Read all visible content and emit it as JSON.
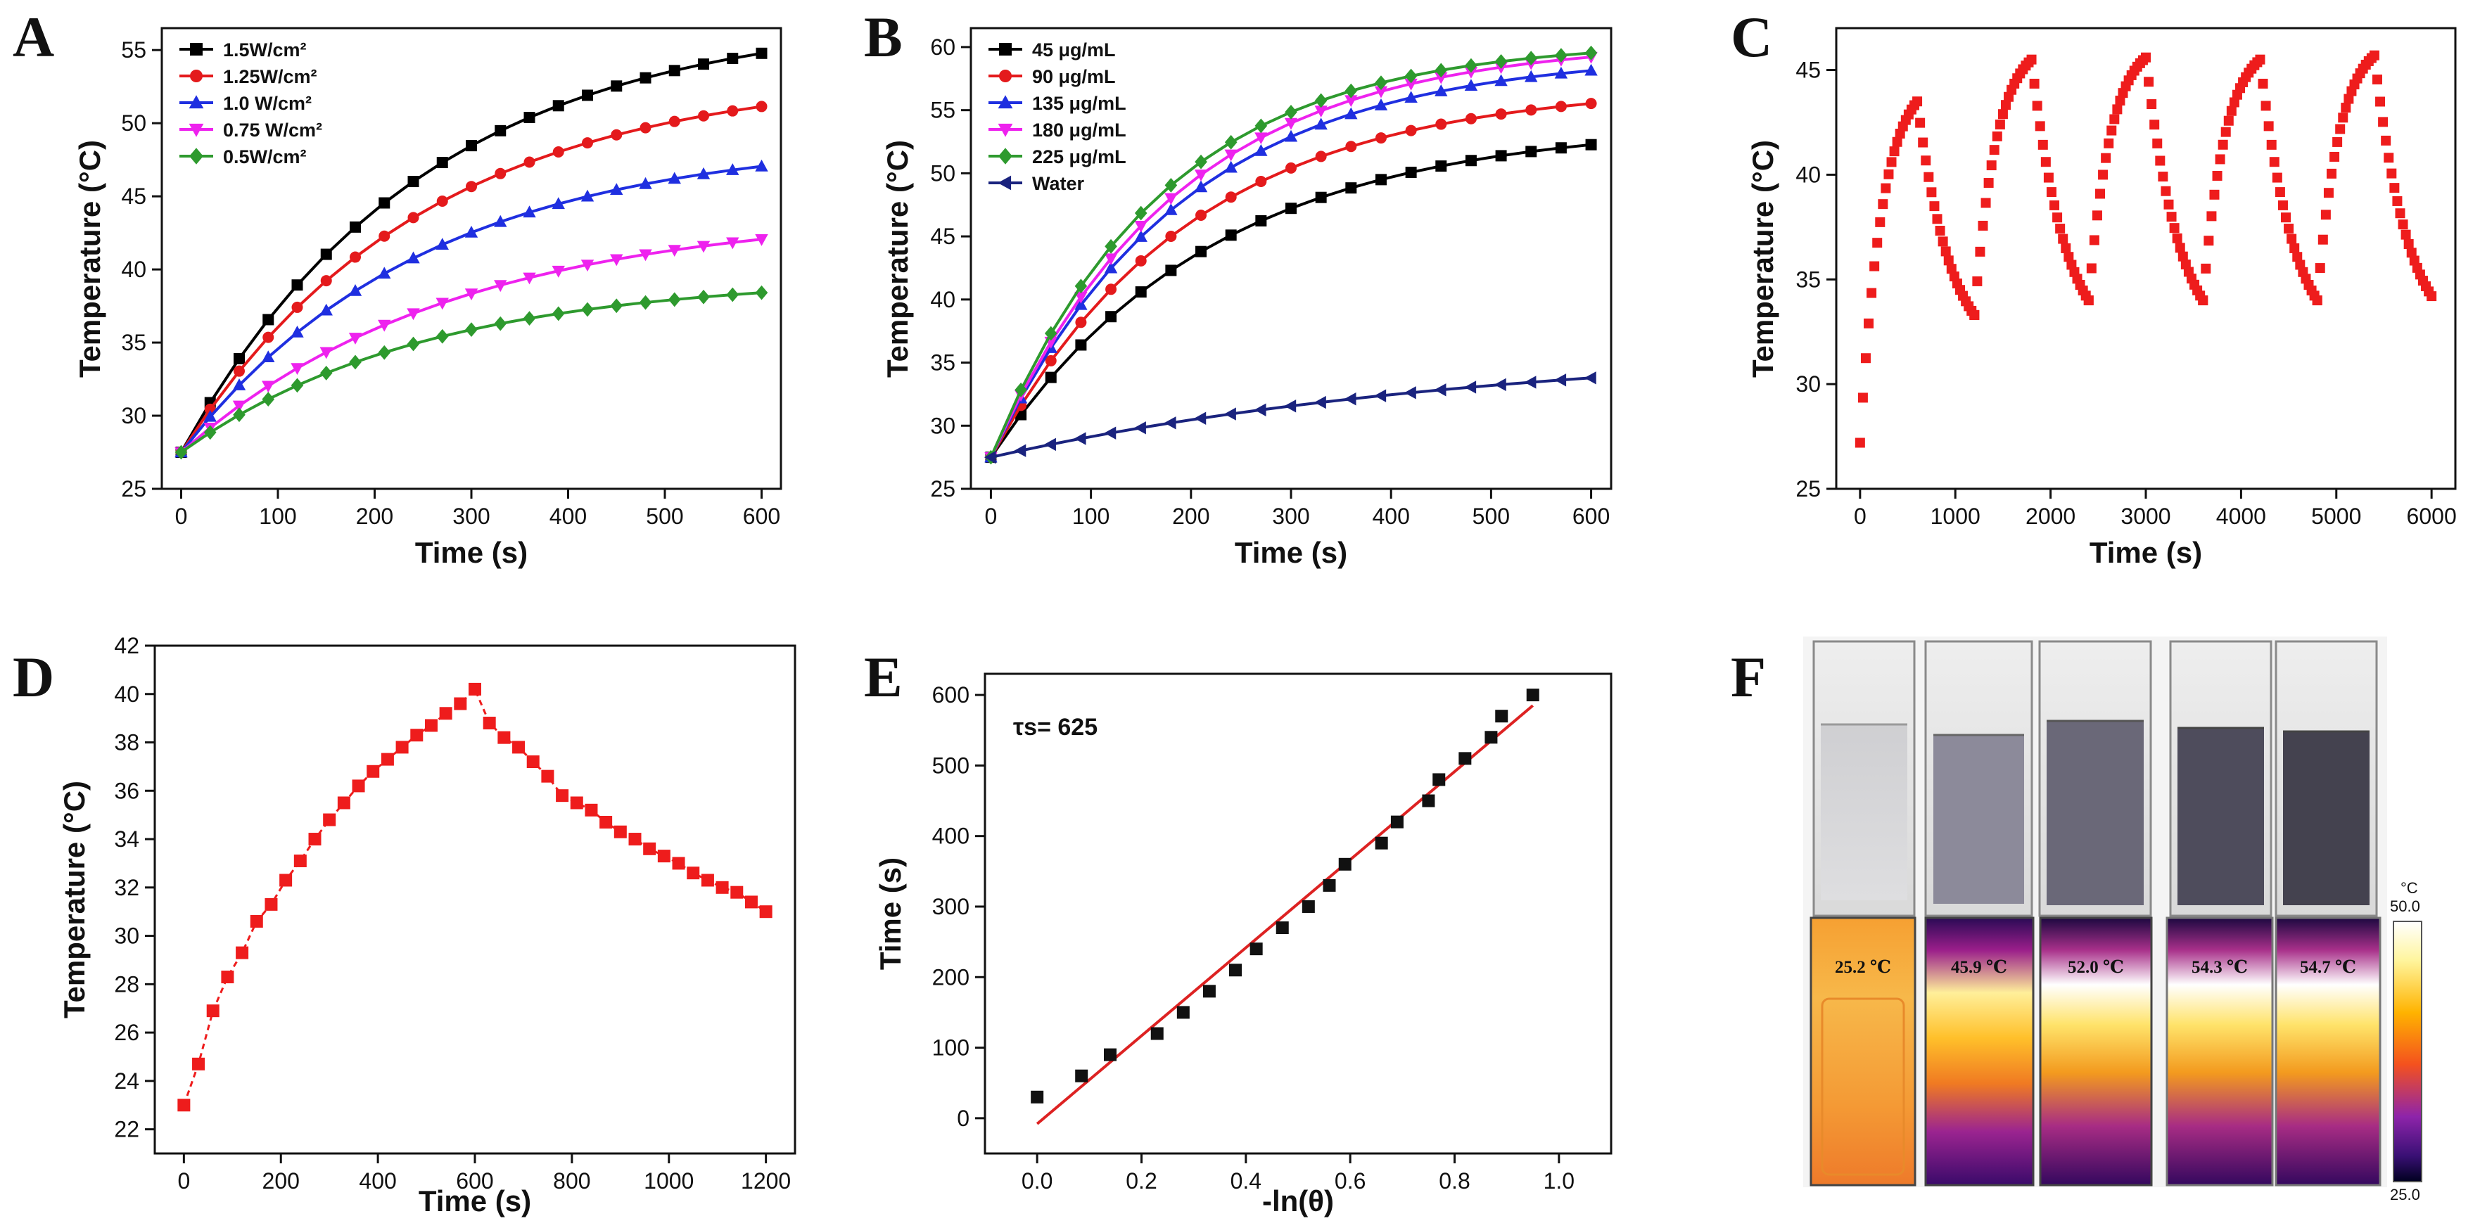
{
  "chart_data": [
    {
      "id": "A",
      "type": "line",
      "panel_label": "A",
      "xlabel": "Time (s)",
      "ylabel": "Temperature (°C)",
      "xlim": [
        -20,
        620
      ],
      "ylim": [
        25,
        56.5
      ],
      "xticks": [
        0,
        100,
        200,
        300,
        400,
        500,
        600
      ],
      "yticks": [
        25,
        30,
        35,
        40,
        45,
        50,
        55
      ],
      "legend_position": "top-left",
      "series": [
        {
          "name": "1.5W/cm²",
          "color": "#000000",
          "marker": "square",
          "plateau": 57.5,
          "tau": 250
        },
        {
          "name": "1.25W/cm²",
          "color": "#e41a1c",
          "marker": "circle",
          "plateau": 53.5,
          "tau": 250
        },
        {
          "name": "1.0 W/cm²",
          "color": "#1f2fe0",
          "marker": "triangle-up",
          "plateau": 49.0,
          "tau": 250
        },
        {
          "name": "0.75 W/cm²",
          "color": "#ee22ee",
          "marker": "triangle-down",
          "plateau": 44.0,
          "tau": 280
        },
        {
          "name": "0.5W/cm²",
          "color": "#2e9a2e",
          "marker": "diamond",
          "plateau": 39.5,
          "tau": 250
        }
      ],
      "start_value": 27.5,
      "x": [
        0,
        30,
        60,
        90,
        120,
        150,
        180,
        210,
        240,
        270,
        300,
        330,
        360,
        390,
        420,
        450,
        480,
        510,
        540,
        570,
        600
      ]
    },
    {
      "id": "B",
      "type": "line",
      "panel_label": "B",
      "xlabel": "Time (s)",
      "ylabel": "Temperature (°C)",
      "xlim": [
        -20,
        620
      ],
      "ylim": [
        25,
        61.5
      ],
      "xticks": [
        0,
        100,
        200,
        300,
        400,
        500,
        600
      ],
      "yticks": [
        25,
        30,
        35,
        40,
        45,
        50,
        55,
        60
      ],
      "legend_position": "top-left",
      "series": [
        {
          "name": "45 μg/mL",
          "color": "#000000",
          "marker": "square",
          "plateau": 54.0,
          "tau": 220
        },
        {
          "name": "90 μg/mL",
          "color": "#e41a1c",
          "marker": "circle",
          "plateau": 57.0,
          "tau": 200
        },
        {
          "name": "135 μg/mL",
          "color": "#1f2fe0",
          "marker": "triangle-up",
          "plateau": 59.5,
          "tau": 190
        },
        {
          "name": "180 μg/mL",
          "color": "#ee22ee",
          "marker": "triangle-down",
          "plateau": 60.5,
          "tau": 185
        },
        {
          "name": "225 μg/mL",
          "color": "#2e9a2e",
          "marker": "diamond",
          "plateau": 60.5,
          "tau": 170
        },
        {
          "name": "Water",
          "color": "#1a237e",
          "marker": "triangle-left",
          "plateau": 36.5,
          "tau": 500
        }
      ],
      "start_value": 27.5,
      "x": [
        0,
        30,
        60,
        90,
        120,
        150,
        180,
        210,
        240,
        270,
        300,
        330,
        360,
        390,
        420,
        450,
        480,
        510,
        540,
        570,
        600
      ]
    },
    {
      "id": "C",
      "type": "scatter",
      "panel_label": "C",
      "xlabel": "Time (s)",
      "ylabel": "Temperature (°C)",
      "xlim": [
        -250,
        6250
      ],
      "ylim": [
        25,
        47
      ],
      "xticks": [
        0,
        1000,
        2000,
        3000,
        4000,
        5000,
        6000
      ],
      "yticks": [
        25,
        30,
        35,
        40,
        45
      ],
      "color": "#ee1c1c",
      "cycles": [
        {
          "t0": 0,
          "start": 27.2,
          "peak": 43.5,
          "end": 33.3
        },
        {
          "t0": 1200,
          "start": 33.3,
          "peak": 45.5,
          "end": 34.0
        },
        {
          "t0": 2400,
          "start": 34.0,
          "peak": 45.6,
          "end": 34.0
        },
        {
          "t0": 3600,
          "start": 34.0,
          "peak": 45.5,
          "end": 34.0
        },
        {
          "t0": 4800,
          "start": 34.0,
          "peak": 45.7,
          "end": 34.2
        }
      ],
      "half_period": 600
    },
    {
      "id": "D",
      "type": "line",
      "panel_label": "D",
      "xlabel": "Time (s)",
      "ylabel": "Temperature (°C)",
      "xlim": [
        -60,
        1260
      ],
      "ylim": [
        21,
        42
      ],
      "xticks": [
        0,
        200,
        400,
        600,
        800,
        1000,
        1200
      ],
      "yticks": [
        22,
        24,
        26,
        28,
        30,
        32,
        34,
        36,
        38,
        40,
        42
      ],
      "color": "#ee1c1c",
      "x": [
        0,
        30,
        60,
        90,
        120,
        150,
        180,
        210,
        240,
        270,
        300,
        330,
        360,
        390,
        420,
        450,
        480,
        510,
        540,
        570,
        600,
        630,
        660,
        690,
        720,
        750,
        780,
        810,
        840,
        870,
        900,
        930,
        960,
        990,
        1020,
        1050,
        1080,
        1110,
        1140,
        1170,
        1200
      ],
      "y": [
        23.0,
        24.7,
        26.9,
        28.3,
        29.3,
        30.6,
        31.3,
        32.3,
        33.1,
        34.0,
        34.8,
        35.5,
        36.2,
        36.8,
        37.3,
        37.8,
        38.3,
        38.7,
        39.2,
        39.6,
        40.2,
        38.8,
        38.2,
        37.8,
        37.2,
        36.6,
        35.8,
        35.5,
        35.2,
        34.7,
        34.3,
        34.0,
        33.6,
        33.3,
        33.0,
        32.6,
        32.3,
        32.0,
        31.8,
        31.4,
        31.0
      ]
    },
    {
      "id": "E",
      "type": "scatter",
      "panel_label": "E",
      "xlabel": "-ln(θ)",
      "ylabel": "Time (s)",
      "annotation": "τs= 625",
      "xlim": [
        -0.1,
        1.1
      ],
      "ylim": [
        -50,
        630
      ],
      "xticks": [
        0.0,
        0.2,
        0.4,
        0.6,
        0.8,
        1.0
      ],
      "xtick_labels": [
        "0.0",
        "0.2",
        "0.4",
        "0.6",
        "0.8",
        "1.0"
      ],
      "yticks": [
        0,
        100,
        200,
        300,
        400,
        500,
        600
      ],
      "x": [
        0.0,
        0.085,
        0.14,
        0.23,
        0.28,
        0.33,
        0.38,
        0.42,
        0.47,
        0.52,
        0.56,
        0.59,
        0.66,
        0.69,
        0.75,
        0.77,
        0.82,
        0.87,
        0.89,
        0.95
      ],
      "y": [
        30,
        60,
        90,
        120,
        150,
        180,
        210,
        240,
        270,
        300,
        330,
        360,
        390,
        420,
        450,
        480,
        510,
        540,
        570,
        600
      ],
      "fit": {
        "color": "#dd2222",
        "x": [
          0.0,
          0.95
        ],
        "y": [
          -8,
          585
        ]
      }
    }
  ],
  "panel_f": {
    "panel_label": "F",
    "temperatures": [
      "25.2 ℃",
      "45.9 ℃",
      "52.0 ℃",
      "54.3 ℃",
      "54.7 ℃"
    ],
    "colorbar": {
      "unit": "°C",
      "max": "50.0",
      "min": "25.0"
    }
  }
}
